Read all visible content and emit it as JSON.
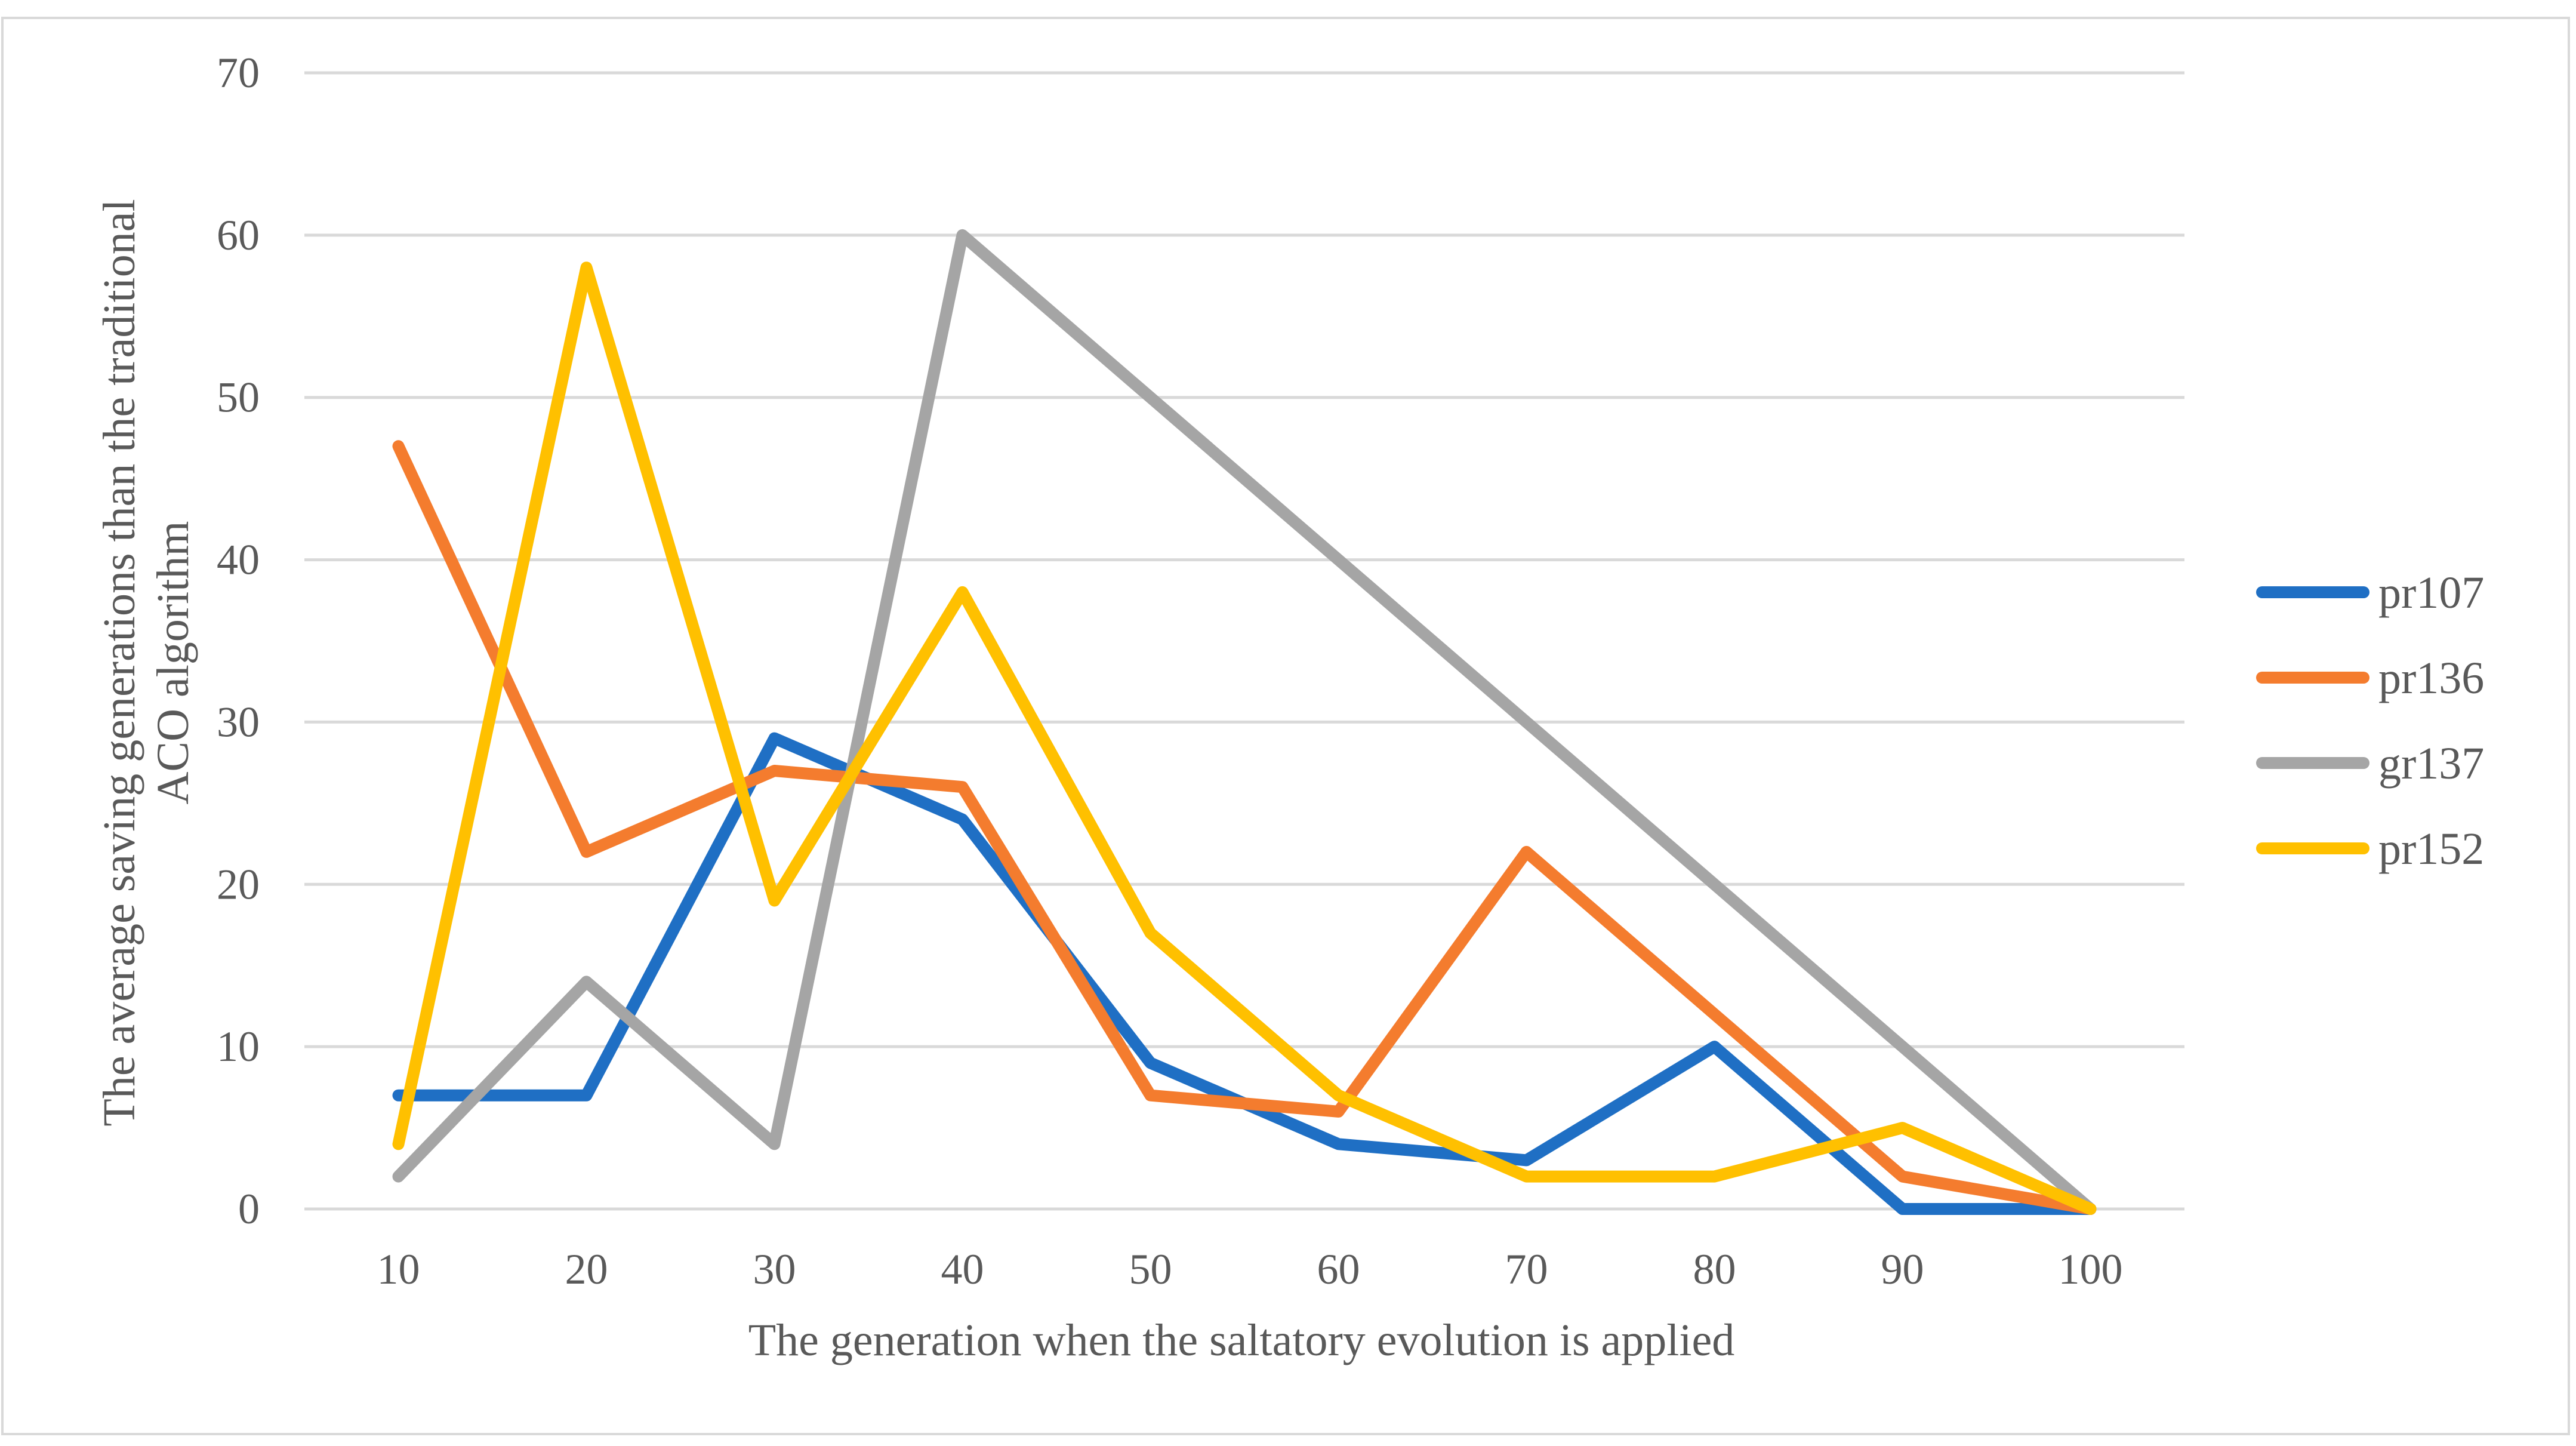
{
  "chart_data": {
    "type": "line",
    "categories": [
      10,
      20,
      30,
      40,
      50,
      60,
      70,
      80,
      90,
      100
    ],
    "series": [
      {
        "name": "pr107",
        "color": "#1F6FC4",
        "values": [
          7,
          7,
          29,
          24,
          9,
          4,
          3,
          10,
          0,
          0
        ]
      },
      {
        "name": "pr136",
        "color": "#F47C2E",
        "values": [
          47,
          22,
          27,
          26,
          7,
          6,
          22,
          12,
          2,
          0
        ]
      },
      {
        "name": "gr137",
        "color": "#A5A5A5",
        "values": [
          2,
          14,
          4,
          60,
          50,
          40,
          30,
          20,
          10,
          0
        ]
      },
      {
        "name": "pr152",
        "color": "#FFC000",
        "values": [
          4,
          58,
          19,
          38,
          17,
          7,
          2,
          2,
          5,
          0
        ]
      }
    ],
    "xlabel": "The generation when the saltatory evolution  is applied",
    "ylabel_lines": [
      "The average saving generations  than the traditional",
      "ACO algorithm"
    ],
    "ylim": [
      0,
      70
    ],
    "yticks": [
      0,
      10,
      20,
      30,
      40,
      50,
      60,
      70
    ],
    "grid": true,
    "legend_position": "right"
  }
}
